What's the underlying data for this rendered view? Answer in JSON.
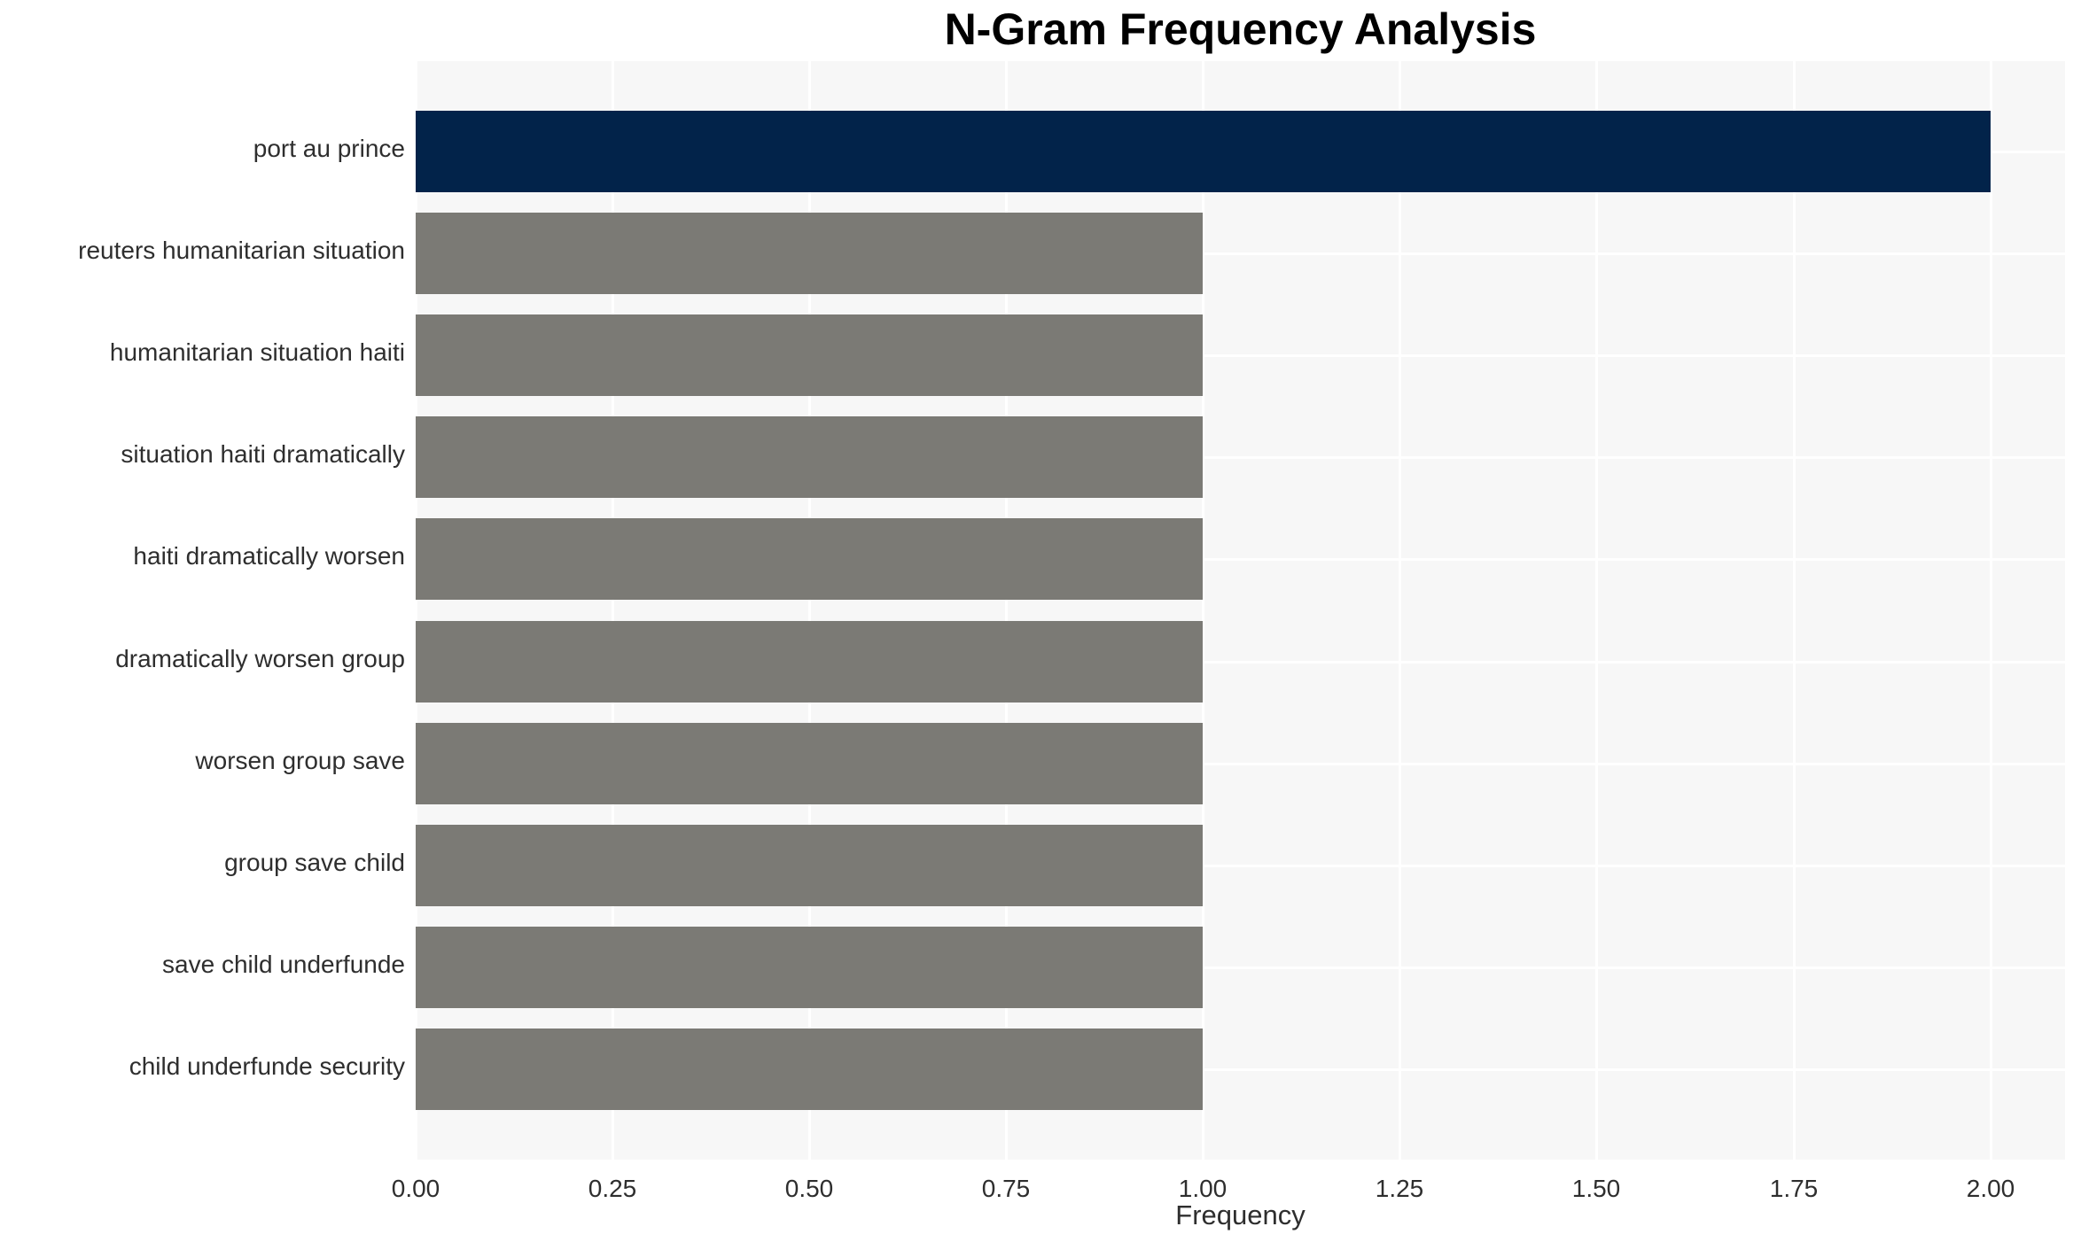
{
  "chart_data": {
    "type": "bar",
    "orientation": "horizontal",
    "title": "N-Gram Frequency Analysis",
    "xlabel": "Frequency",
    "ylabel": "",
    "categories": [
      "port au prince",
      "reuters humanitarian situation",
      "humanitarian situation haiti",
      "situation haiti dramatically",
      "haiti dramatically worsen",
      "dramatically worsen group",
      "worsen group save",
      "group save child",
      "save child underfunde",
      "child underfunde security"
    ],
    "values": [
      2.0,
      1.0,
      1.0,
      1.0,
      1.0,
      1.0,
      1.0,
      1.0,
      1.0,
      1.0
    ],
    "bar_colors": [
      "#02234a",
      "#7b7a75",
      "#7b7a75",
      "#7b7a75",
      "#7b7a75",
      "#7b7a75",
      "#7b7a75",
      "#7b7a75",
      "#7b7a75",
      "#7b7a75"
    ],
    "xticks": [
      "0.00",
      "0.25",
      "0.50",
      "0.75",
      "1.00",
      "1.25",
      "1.50",
      "1.75",
      "2.00"
    ],
    "xtick_values": [
      0,
      0.25,
      0.5,
      0.75,
      1.0,
      1.25,
      1.5,
      1.75,
      2.0
    ],
    "xlim": [
      0,
      2.095
    ],
    "grid": true,
    "legend_position": "none",
    "colors": {
      "plot_background": "#f7f7f7",
      "grid_line": "#ffffff",
      "highlight_bar": "#02234a",
      "default_bar": "#7b7a75",
      "tick_text": "#2e2e2e",
      "title_text": "#000000"
    }
  }
}
